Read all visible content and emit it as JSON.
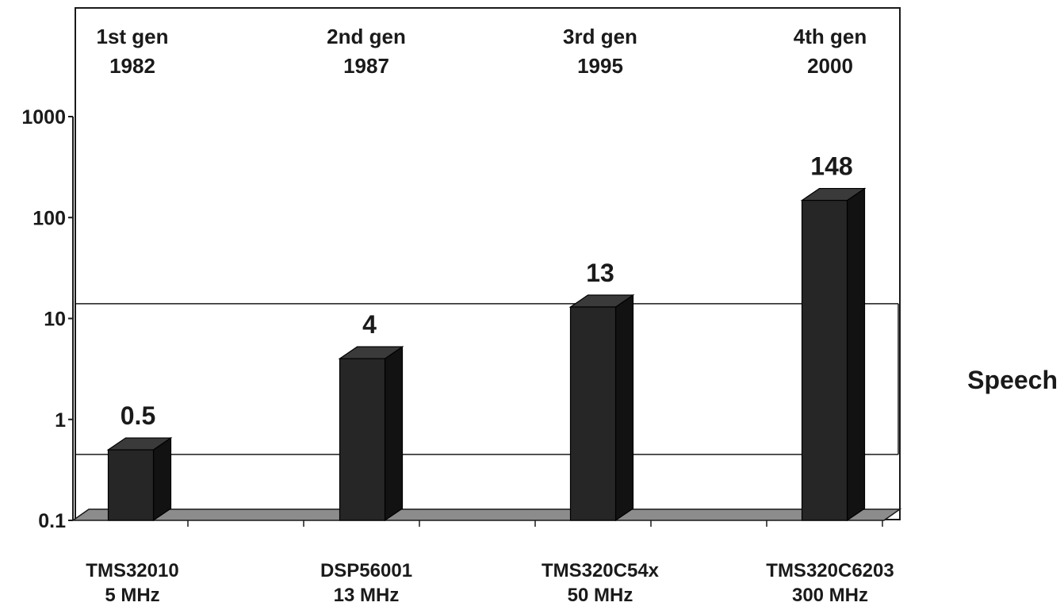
{
  "chart_data": {
    "type": "bar",
    "title": "",
    "xlabel": "",
    "ylabel": "",
    "yscale": "log",
    "ylim": [
      0.1,
      1000
    ],
    "yticks": [
      {
        "value": 0.1,
        "label": "0.1"
      },
      {
        "value": 1,
        "label": "1"
      },
      {
        "value": 10,
        "label": "10"
      },
      {
        "value": 100,
        "label": "100"
      },
      {
        "value": 1000,
        "label": "1000"
      }
    ],
    "grid": false,
    "bar_color": "#262626",
    "floor_color": "#8c8c8c",
    "bars": [
      {
        "generation": "1st gen",
        "year": "1982",
        "processor": "TMS32010",
        "clock": "5 MHz",
        "value": 0.5,
        "value_label": "0.5"
      },
      {
        "generation": "2nd gen",
        "year": "1987",
        "processor": "DSP56001",
        "clock": "13 MHz",
        "value": 4,
        "value_label": "4"
      },
      {
        "generation": "3rd gen",
        "year": "1995",
        "processor": "TMS320C54x",
        "clock": "50 MHz",
        "value": 13,
        "value_label": "13"
      },
      {
        "generation": "4th gen",
        "year": "2000",
        "processor": "TMS320C6203",
        "clock": "300 MHz",
        "value": 148,
        "value_label": "148"
      }
    ],
    "band": {
      "label": "Speech",
      "low": 0.45,
      "high": 14
    }
  }
}
